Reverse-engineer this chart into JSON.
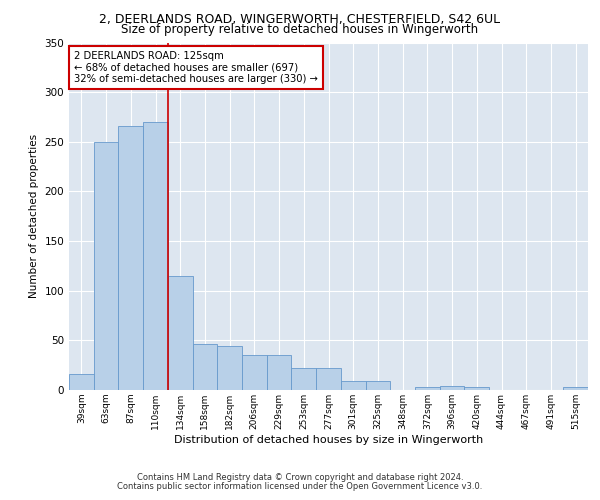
{
  "title1": "2, DEERLANDS ROAD, WINGERWORTH, CHESTERFIELD, S42 6UL",
  "title2": "Size of property relative to detached houses in Wingerworth",
  "xlabel": "Distribution of detached houses by size in Wingerworth",
  "ylabel": "Number of detached properties",
  "categories": [
    "39sqm",
    "63sqm",
    "87sqm",
    "110sqm",
    "134sqm",
    "158sqm",
    "182sqm",
    "206sqm",
    "229sqm",
    "253sqm",
    "277sqm",
    "301sqm",
    "325sqm",
    "348sqm",
    "372sqm",
    "396sqm",
    "420sqm",
    "444sqm",
    "467sqm",
    "491sqm",
    "515sqm"
  ],
  "values": [
    16,
    250,
    266,
    270,
    115,
    46,
    44,
    35,
    35,
    22,
    22,
    9,
    9,
    0,
    3,
    4,
    3,
    0,
    0,
    0,
    3
  ],
  "bar_color": "#b8d0e8",
  "bar_edge_color": "#6699cc",
  "vline_x": 3.5,
  "vline_color": "#cc0000",
  "annotation_text": "2 DEERLANDS ROAD: 125sqm\n← 68% of detached houses are smaller (697)\n32% of semi-detached houses are larger (330) →",
  "annotation_box_color": "#ffffff",
  "annotation_box_edge": "#cc0000",
  "ylim": [
    0,
    350
  ],
  "yticks": [
    0,
    50,
    100,
    150,
    200,
    250,
    300,
    350
  ],
  "footer1": "Contains HM Land Registry data © Crown copyright and database right 2024.",
  "footer2": "Contains public sector information licensed under the Open Government Licence v3.0.",
  "plot_bg_color": "#dde6f0"
}
